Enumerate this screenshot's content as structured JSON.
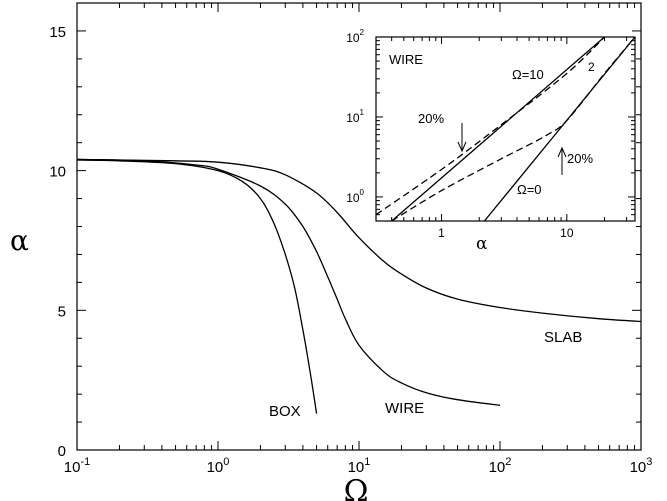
{
  "chart_data": [
    {
      "type": "line",
      "xlabel": "Ω",
      "ylabel": "α",
      "xscale": "log",
      "xlim": [
        0.1,
        1000
      ],
      "ylim": [
        0,
        16
      ],
      "x_ticks": [
        0.1,
        1,
        10,
        100,
        1000
      ],
      "x_tick_labels": [
        {
          "base": "10",
          "exp": "-1"
        },
        {
          "base": "10",
          "exp": "0"
        },
        {
          "base": "10",
          "exp": "1"
        },
        {
          "base": "10",
          "exp": "2"
        },
        {
          "base": "10",
          "exp": "3"
        }
      ],
      "y_ticks": [
        0,
        5,
        10,
        15
      ],
      "y_tick_labels": [
        "0",
        "5",
        "10",
        "15"
      ],
      "series": [
        {
          "name": "BOX",
          "x": [
            0.1,
            0.2,
            0.5,
            1.0,
            1.5,
            2.0,
            2.5,
            3.0,
            3.5,
            4.0,
            4.5,
            5.0
          ],
          "y": [
            10.38,
            10.35,
            10.25,
            10.0,
            9.6,
            9.0,
            8.1,
            7.0,
            5.8,
            4.3,
            2.8,
            1.3
          ]
        },
        {
          "name": "WIRE",
          "x": [
            0.1,
            0.3,
            0.7,
            1.0,
            2.0,
            3.0,
            4.0,
            5.0,
            6.0,
            7.0,
            8.0,
            10.0,
            15.0,
            20.0,
            30.0,
            50.0,
            100.0
          ],
          "y": [
            10.4,
            10.35,
            10.2,
            10.05,
            9.45,
            8.8,
            8.0,
            7.1,
            6.2,
            5.4,
            4.7,
            3.75,
            2.8,
            2.4,
            2.05,
            1.8,
            1.6
          ]
        },
        {
          "name": "SLAB",
          "x": [
            0.1,
            0.5,
            1.0,
            2.0,
            3.0,
            5.0,
            7.0,
            10.0,
            15.0,
            20.0,
            30.0,
            50.0,
            100.0,
            200.0,
            500.0,
            1000.0
          ],
          "y": [
            10.4,
            10.35,
            10.3,
            10.1,
            9.85,
            9.2,
            8.5,
            7.6,
            6.75,
            6.3,
            5.8,
            5.4,
            5.1,
            4.9,
            4.7,
            4.6
          ]
        }
      ]
    },
    {
      "type": "line",
      "title": "WIRE",
      "xlabel": "α",
      "ylabel": "",
      "xscale": "log",
      "yscale": "log",
      "xlim": [
        0.3,
        35
      ],
      "ylim": [
        0.5,
        100
      ],
      "x_ticks": [
        1,
        10
      ],
      "x_tick_labels": [
        "1",
        "10"
      ],
      "y_ticks": [
        1,
        10,
        100
      ],
      "y_tick_labels": [
        {
          "base": "10",
          "exp": "0"
        },
        {
          "base": "10",
          "exp": "1"
        },
        {
          "base": "10",
          "exp": "2"
        }
      ],
      "annotations": [
        "Ω=10",
        "2",
        "Ω=0",
        "20%",
        "20%"
      ],
      "series": [
        {
          "style": "solid",
          "x": [
            0.4,
            20.0
          ],
          "y": [
            0.5,
            100.0
          ]
        },
        {
          "style": "dashed",
          "x": [
            0.3,
            1.0,
            3.0,
            10.0,
            20.0
          ],
          "y": [
            0.6,
            2.2,
            8.0,
            35.0,
            100.0
          ]
        },
        {
          "style": "solid",
          "x": [
            2.2,
            35.0
          ],
          "y": [
            0.5,
            100.0
          ]
        },
        {
          "style": "dashed",
          "x": [
            0.4,
            1.0,
            3.0,
            5.0,
            7.0,
            10.0,
            20.0,
            35.0
          ],
          "y": [
            0.5,
            1.2,
            3.0,
            4.5,
            6.0,
            9.0,
            35.0,
            100.0
          ]
        }
      ]
    }
  ]
}
